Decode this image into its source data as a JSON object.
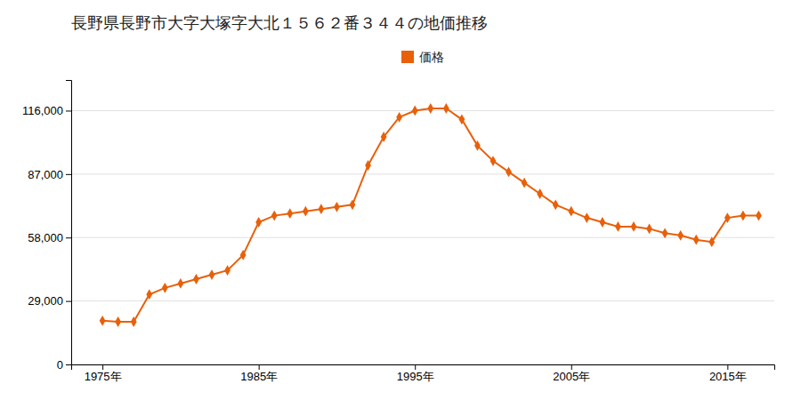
{
  "chart_data": {
    "type": "line",
    "title": "長野県長野市大字大塚字大北１５６２番３４４の地価推移",
    "x": [
      1975,
      1976,
      1977,
      1978,
      1979,
      1980,
      1981,
      1982,
      1983,
      1984,
      1985,
      1986,
      1987,
      1988,
      1989,
      1990,
      1991,
      1992,
      1993,
      1994,
      1995,
      1996,
      1997,
      1998,
      1999,
      2000,
      2001,
      2002,
      2003,
      2004,
      2005,
      2006,
      2007,
      2008,
      2009,
      2010,
      2011,
      2012,
      2013,
      2014,
      2015,
      2016,
      2017
    ],
    "series": [
      {
        "name": "価格",
        "color": "#e8600a",
        "marker": "diamond",
        "values": [
          20000,
          19500,
          19500,
          32000,
          35000,
          37000,
          39000,
          41000,
          43000,
          50000,
          65000,
          68000,
          69000,
          70000,
          71000,
          72000,
          73000,
          91000,
          104000,
          113000,
          116000,
          117000,
          117000,
          112000,
          100000,
          93000,
          88000,
          83000,
          78000,
          73000,
          70000,
          67000,
          65000,
          63000,
          63000,
          62000,
          60000,
          59000,
          57000,
          56000,
          67000,
          68000,
          68000
        ]
      }
    ],
    "xlim": [
      1973,
      2018
    ],
    "xticks": [
      {
        "value": 1975,
        "label": "1975年"
      },
      {
        "value": 1985,
        "label": "1985年"
      },
      {
        "value": 1995,
        "label": "1995年"
      },
      {
        "value": 2005,
        "label": "2005年"
      },
      {
        "value": 2015,
        "label": "2015年"
      }
    ],
    "ylim": [
      0,
      130000
    ],
    "yticks": [
      0,
      {
        "value": 29000,
        "label": "29,000"
      },
      {
        "value": 58000,
        "label": "58,000"
      },
      {
        "value": 87000,
        "label": "87,000"
      },
      {
        "value": 116000,
        "label": "116,000"
      }
    ],
    "grid": true,
    "legend": "top"
  }
}
